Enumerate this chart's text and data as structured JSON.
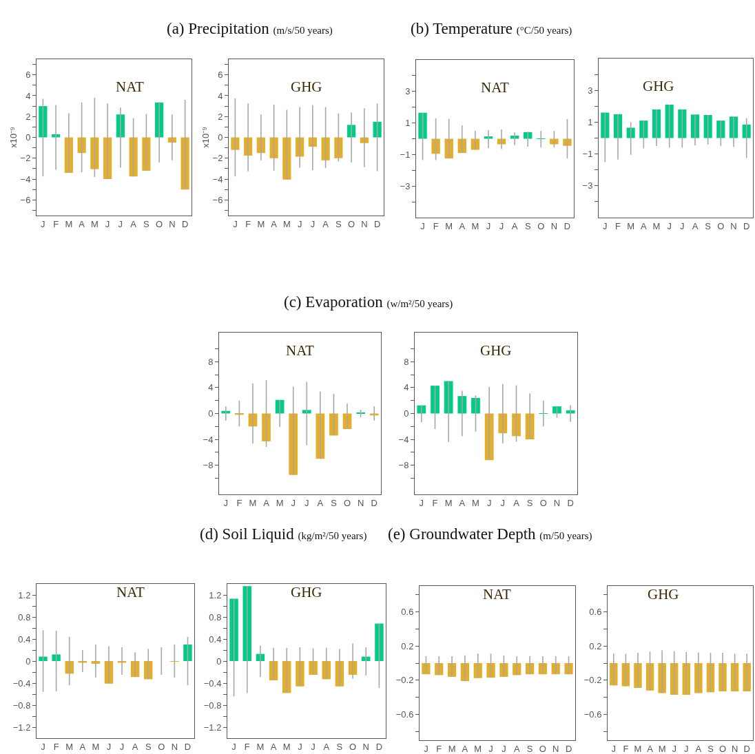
{
  "chart_data": [
    {
      "type": "bar",
      "title": "NAT",
      "annotations": [
        "(a) Precipitation (m/s/50 years)"
      ],
      "ylabel": "x10⁻⁹",
      "categories": [
        "J",
        "F",
        "M",
        "A",
        "M",
        "J",
        "J",
        "A",
        "S",
        "O",
        "N",
        "D"
      ],
      "values": [
        3.0,
        0.3,
        -3.4,
        -1.5,
        -3.05,
        -4.0,
        2.2,
        -3.75,
        -3.2,
        3.35,
        -0.5,
        -5.0
      ],
      "colors": [
        "#00cc88",
        "#00cc88",
        "#e3ae2b",
        "#e3ae2b",
        "#e3ae2b",
        "#e3ae2b",
        "#00cc88",
        "#e3ae2b",
        "#e3ae2b",
        "#00cc88",
        "#e3ae2b",
        "#e3ae2b"
      ],
      "errors": [
        [
          -3.75,
          3.7
        ],
        [
          -3.1,
          3.1
        ],
        [
          -3.4,
          2.3
        ],
        [
          -3.35,
          3.35
        ],
        [
          -3.8,
          3.8
        ],
        [
          -4.0,
          3.25
        ],
        [
          -2.9,
          2.85
        ],
        [
          -3.75,
          1.85
        ],
        [
          -3.2,
          2.25
        ],
        [
          -2.4,
          3.35
        ],
        [
          -2.2,
          2.2
        ],
        [
          -5.0,
          3.6
        ]
      ],
      "ylim": [
        -7.5,
        7.5
      ],
      "yticks": [
        {
          "value": -7,
          "label": null
        },
        -6,
        {
          "value": -5,
          "label": null
        },
        -4,
        {
          "value": -3,
          "label": null
        },
        -2,
        {
          "value": -1,
          "label": null
        },
        0,
        {
          "value": 1,
          "label": null
        },
        2,
        {
          "value": 3,
          "label": null
        },
        4,
        {
          "value": 5,
          "label": null
        },
        6,
        {
          "value": 7,
          "label": null
        }
      ]
    },
    {
      "type": "bar",
      "title": "GHG",
      "ylabel": "x10⁻⁹",
      "categories": [
        "J",
        "F",
        "M",
        "A",
        "M",
        "J",
        "J",
        "A",
        "S",
        "O",
        "N",
        "D"
      ],
      "values": [
        -1.2,
        -1.75,
        -1.5,
        -2.0,
        -4.05,
        -1.85,
        -0.9,
        -2.2,
        -2.0,
        1.2,
        -0.55,
        1.5
      ],
      "colors": [
        "#e3ae2b",
        "#e3ae2b",
        "#e3ae2b",
        "#e3ae2b",
        "#e3ae2b",
        "#e3ae2b",
        "#e3ae2b",
        "#e3ae2b",
        "#e3ae2b",
        "#00cc88",
        "#e3ae2b",
        "#00cc88"
      ],
      "errors": [
        [
          -3.75,
          3.75
        ],
        [
          -3.25,
          3.25
        ],
        [
          -2.2,
          2.2
        ],
        [
          -3.2,
          3.15
        ],
        [
          -4.05,
          2.65
        ],
        [
          -2.9,
          2.9
        ],
        [
          -3.15,
          3.1
        ],
        [
          -2.95,
          2.9
        ],
        [
          -2.3,
          2.3
        ],
        [
          -2.4,
          2.4
        ],
        [
          -2.85,
          2.8
        ],
        [
          -3.25,
          3.25
        ]
      ],
      "ylim": [
        -7.5,
        7.5
      ],
      "yticks": [
        {
          "value": -7,
          "label": null
        },
        -6,
        {
          "value": -5,
          "label": null
        },
        -4,
        {
          "value": -3,
          "label": null
        },
        -2,
        {
          "value": -1,
          "label": null
        },
        0,
        {
          "value": 1,
          "label": null
        },
        2,
        {
          "value": 3,
          "label": null
        },
        4,
        {
          "value": 5,
          "label": null
        },
        6,
        {
          "value": 7,
          "label": null
        }
      ]
    },
    {
      "type": "bar",
      "title": "NAT",
      "annotations": [
        "(b) Temperature (°C/50 years)"
      ],
      "categories": [
        "J",
        "F",
        "M",
        "A",
        "M",
        "J",
        "J",
        "A",
        "S",
        "O",
        "N",
        "D"
      ],
      "values": [
        1.65,
        -0.95,
        -1.25,
        -0.9,
        -0.7,
        0.15,
        -0.35,
        0.2,
        0.42,
        0.02,
        -0.35,
        -0.45
      ],
      "colors": [
        "#00cc88",
        "#e3ae2b",
        "#e3ae2b",
        "#e3ae2b",
        "#e3ae2b",
        "#00cc88",
        "#e3ae2b",
        "#00cc88",
        "#00cc88",
        "#00cc88",
        "#e3ae2b",
        "#e3ae2b"
      ],
      "errors": [
        [
          -1.35,
          1.65
        ],
        [
          -1.35,
          1.3
        ],
        [
          -1.25,
          1.25
        ],
        [
          -0.9,
          0.85
        ],
        [
          -0.7,
          0.5
        ],
        [
          -0.6,
          0.55
        ],
        [
          -0.65,
          0.6
        ],
        [
          -0.4,
          0.4
        ],
        [
          -0.5,
          0.45
        ],
        [
          -0.55,
          0.5
        ],
        [
          -0.55,
          0.5
        ],
        [
          -1.25,
          1.25
        ]
      ],
      "ylim": [
        -5,
        5
      ],
      "yticks": [
        {
          "value": -4,
          "label": null
        },
        -3,
        {
          "value": -2,
          "label": null
        },
        -1,
        {
          "value": 0,
          "label": null
        },
        1,
        {
          "value": 2,
          "label": null
        },
        3,
        {
          "value": 4,
          "label": null
        }
      ]
    },
    {
      "type": "bar",
      "title": "GHG",
      "categories": [
        "J",
        "F",
        "M",
        "A",
        "M",
        "J",
        "J",
        "A",
        "S",
        "O",
        "N",
        "D"
      ],
      "values": [
        1.6,
        1.5,
        0.65,
        1.1,
        1.8,
        2.1,
        1.8,
        1.48,
        1.45,
        1.1,
        1.35,
        0.85
      ],
      "colors": [
        "#00cc88",
        "#00cc88",
        "#00cc88",
        "#00cc88",
        "#00cc88",
        "#00cc88",
        "#00cc88",
        "#00cc88",
        "#00cc88",
        "#00cc88",
        "#00cc88",
        "#00cc88"
      ],
      "errors": [
        [
          -1.5,
          1.6
        ],
        [
          -1.35,
          1.5
        ],
        [
          -1.05,
          1.0
        ],
        [
          -0.65,
          1.1
        ],
        [
          -0.5,
          1.8
        ],
        [
          -0.6,
          2.1
        ],
        [
          -0.6,
          1.8
        ],
        [
          -0.45,
          1.48
        ],
        [
          -0.4,
          1.45
        ],
        [
          -0.5,
          1.1
        ],
        [
          -0.55,
          1.35
        ],
        [
          -1.25,
          1.25
        ]
      ],
      "ylim": [
        -5,
        5
      ],
      "yticks": [
        {
          "value": -4,
          "label": null
        },
        -3,
        {
          "value": -2,
          "label": null
        },
        -1,
        {
          "value": 0,
          "label": null
        },
        1,
        {
          "value": 2,
          "label": null
        },
        3,
        {
          "value": 4,
          "label": null
        }
      ]
    },
    {
      "type": "bar",
      "title": "NAT",
      "annotations": [
        "(c) Evaporation (w/m²/50 years)"
      ],
      "categories": [
        "J",
        "F",
        "M",
        "A",
        "M",
        "J",
        "J",
        "A",
        "S",
        "O",
        "N",
        "D"
      ],
      "values": [
        0.4,
        -0.2,
        -2.0,
        -4.3,
        2.1,
        -9.5,
        0.55,
        -7.0,
        -3.4,
        -2.4,
        0.15,
        -0.3
      ],
      "colors": [
        "#00cc88",
        "#e3ae2b",
        "#e3ae2b",
        "#e3ae2b",
        "#00cc88",
        "#e3ae2b",
        "#00cc88",
        "#e3ae2b",
        "#e3ae2b",
        "#e3ae2b",
        "#00cc88",
        "#e3ae2b"
      ],
      "errors": [
        [
          -1.1,
          1.1
        ],
        [
          -2.0,
          2.0
        ],
        [
          -4.65,
          4.65
        ],
        [
          -5.15,
          5.15
        ],
        [
          -2.1,
          2.1
        ],
        [
          -9.5,
          4.15
        ],
        [
          -4.9,
          4.9
        ],
        [
          -7.0,
          3.4
        ],
        [
          -3.4,
          3.05
        ],
        [
          -2.4,
          1.55
        ],
        [
          -0.6,
          0.6
        ],
        [
          -1.1,
          1.1
        ]
      ],
      "ylim": [
        -12.5,
        12.5
      ],
      "yticks": [
        {
          "value": -10,
          "label": null
        },
        -8,
        {
          "value": -6,
          "label": null
        },
        -4,
        {
          "value": -2,
          "label": null
        },
        0,
        {
          "value": 2,
          "label": null
        },
        4,
        {
          "value": 6,
          "label": null
        },
        8,
        {
          "value": 10,
          "label": null
        }
      ]
    },
    {
      "type": "bar",
      "title": "GHG",
      "categories": [
        "J",
        "F",
        "M",
        "A",
        "M",
        "J",
        "J",
        "A",
        "S",
        "O",
        "N",
        "D"
      ],
      "values": [
        1.25,
        4.3,
        5.0,
        2.7,
        2.4,
        -7.2,
        -3.05,
        -3.5,
        -4.0,
        0.05,
        1.1,
        0.5
      ],
      "colors": [
        "#00cc88",
        "#00cc88",
        "#00cc88",
        "#00cc88",
        "#00cc88",
        "#e3ae2b",
        "#e3ae2b",
        "#e3ae2b",
        "#e3ae2b",
        "#00cc88",
        "#00cc88",
        "#00cc88"
      ],
      "errors": [
        [
          -1.35,
          1.3
        ],
        [
          -2.4,
          4.3
        ],
        [
          -4.4,
          5.0
        ],
        [
          -3.5,
          3.5
        ],
        [
          -2.8,
          2.8
        ],
        [
          -7.2,
          4.1
        ],
        [
          -4.6,
          4.55
        ],
        [
          -4.35,
          4.35
        ],
        [
          -4.0,
          3.1
        ],
        [
          -2.0,
          2.0
        ],
        [
          -0.65,
          1.1
        ],
        [
          -1.3,
          1.25
        ]
      ],
      "ylim": [
        -12.5,
        12.5
      ],
      "yticks": [
        {
          "value": -10,
          "label": null
        },
        -8,
        {
          "value": -6,
          "label": null
        },
        -4,
        {
          "value": -2,
          "label": null
        },
        0,
        {
          "value": 2,
          "label": null
        },
        4,
        {
          "value": 6,
          "label": null
        },
        8,
        {
          "value": 10,
          "label": null
        }
      ]
    },
    {
      "type": "bar",
      "title": "NAT",
      "annotations": [
        "(d) Soil Liquid (kg/m²/50 years)"
      ],
      "categories": [
        "J",
        "F",
        "M",
        "A",
        "M",
        "J",
        "J",
        "A",
        "S",
        "O",
        "N",
        "D"
      ],
      "values": [
        0.08,
        0.12,
        -0.23,
        -0.03,
        -0.05,
        -0.41,
        -0.03,
        -0.29,
        -0.33,
        0,
        -0.01,
        0.3
      ],
      "colors": [
        "#00cc88",
        "#00cc88",
        "#e3ae2b",
        "#e3ae2b",
        "#e3ae2b",
        "#e3ae2b",
        "#e3ae2b",
        "#e3ae2b",
        "#e3ae2b",
        "#e3ae2b",
        "#e3ae2b",
        "#00cc88"
      ],
      "errors": [
        [
          -0.56,
          0.56
        ],
        [
          -0.55,
          0.55
        ],
        [
          -0.44,
          0.44
        ],
        [
          -0.2,
          0.2
        ],
        [
          -0.3,
          0.3
        ],
        [
          -0.41,
          0.27
        ],
        [
          -0.25,
          0.25
        ],
        [
          -0.29,
          0.16
        ],
        [
          -0.33,
          0.22
        ],
        [
          -0.25,
          0.25
        ],
        [
          -0.3,
          0.3
        ],
        [
          -0.44,
          0.44
        ]
      ],
      "ylim": [
        -1.4,
        1.4
      ],
      "yticks": [
        -1.2,
        {
          "value": -1.0,
          "label": null
        },
        -0.8,
        {
          "value": -0.6,
          "label": null
        },
        -0.4,
        {
          "value": -0.2,
          "label": null
        },
        0,
        {
          "value": 0.2,
          "label": null
        },
        0.4,
        {
          "value": 0.6,
          "label": null
        },
        0.8,
        {
          "value": 1.0,
          "label": null
        },
        1.2
      ]
    },
    {
      "type": "bar",
      "title": "GHG",
      "categories": [
        "J",
        "F",
        "M",
        "A",
        "M",
        "J",
        "J",
        "A",
        "S",
        "O",
        "N",
        "D"
      ],
      "values": [
        1.13,
        1.36,
        0.13,
        -0.35,
        -0.58,
        -0.46,
        -0.25,
        -0.33,
        -0.46,
        -0.25,
        0.08,
        0.68
      ],
      "colors": [
        "#00cc88",
        "#00cc88",
        "#00cc88",
        "#e3ae2b",
        "#e3ae2b",
        "#e3ae2b",
        "#e3ae2b",
        "#e3ae2b",
        "#e3ae2b",
        "#e3ae2b",
        "#00cc88",
        "#00cc88"
      ],
      "errors": [
        [
          -0.64,
          1.13
        ],
        [
          -0.58,
          1.36
        ],
        [
          -0.29,
          0.28
        ],
        [
          -0.35,
          0.24
        ],
        [
          -0.58,
          0.24
        ],
        [
          -0.46,
          0.25
        ],
        [
          -0.25,
          0.23
        ],
        [
          -0.33,
          0.24
        ],
        [
          -0.46,
          0.22
        ],
        [
          -0.32,
          0.32
        ],
        [
          -0.26,
          0.25
        ],
        [
          -0.49,
          0.68
        ]
      ],
      "ylim": [
        -1.4,
        1.4
      ],
      "yticks": [
        -1.2,
        {
          "value": -1.0,
          "label": null
        },
        -0.8,
        {
          "value": -0.6,
          "label": null
        },
        -0.4,
        {
          "value": -0.2,
          "label": null
        },
        0,
        {
          "value": 0.2,
          "label": null
        },
        0.4,
        {
          "value": 0.6,
          "label": null
        },
        0.8,
        {
          "value": 1.0,
          "label": null
        },
        1.2
      ]
    },
    {
      "type": "bar",
      "title": "NAT",
      "annotations": [
        "(e) Groundwater Depth (m/50 years)"
      ],
      "categories": [
        "J",
        "F",
        "M",
        "A",
        "M",
        "J",
        "J",
        "A",
        "S",
        "O",
        "N",
        "D"
      ],
      "values": [
        -0.13,
        -0.14,
        -0.16,
        -0.21,
        -0.175,
        -0.17,
        -0.16,
        -0.14,
        -0.13,
        -0.13,
        -0.13,
        -0.13
      ],
      "colors": [
        "#e3ae2b",
        "#e3ae2b",
        "#e3ae2b",
        "#e3ae2b",
        "#e3ae2b",
        "#e3ae2b",
        "#e3ae2b",
        "#e3ae2b",
        "#e3ae2b",
        "#e3ae2b",
        "#e3ae2b",
        "#e3ae2b"
      ],
      "errors": [
        [
          -0.13,
          0.08
        ],
        [
          -0.14,
          0.08
        ],
        [
          -0.16,
          0.08
        ],
        [
          -0.21,
          0.09
        ],
        [
          -0.175,
          0.11
        ],
        [
          -0.17,
          0.11
        ],
        [
          -0.16,
          0.09
        ],
        [
          -0.14,
          0.08
        ],
        [
          -0.13,
          0.08
        ],
        [
          -0.13,
          0.08
        ],
        [
          -0.13,
          0.08
        ],
        [
          -0.13,
          0.08
        ]
      ],
      "ylim": [
        -0.9,
        0.9
      ],
      "yticks": [
        {
          "value": -0.8,
          "label": null
        },
        -0.6,
        {
          "value": -0.4,
          "label": null
        },
        -0.2,
        {
          "value": 0,
          "label": null
        },
        0.2,
        {
          "value": 0.4,
          "label": null
        },
        0.6,
        {
          "value": 0.8,
          "label": null
        }
      ]
    },
    {
      "type": "bar",
      "title": "GHG",
      "categories": [
        "J",
        "F",
        "M",
        "A",
        "M",
        "J",
        "J",
        "A",
        "S",
        "O",
        "N",
        "D"
      ],
      "values": [
        -0.26,
        -0.27,
        -0.29,
        -0.32,
        -0.35,
        -0.37,
        -0.37,
        -0.35,
        -0.34,
        -0.33,
        -0.33,
        -0.33
      ],
      "colors": [
        "#e3ae2b",
        "#e3ae2b",
        "#e3ae2b",
        "#e3ae2b",
        "#e3ae2b",
        "#e3ae2b",
        "#e3ae2b",
        "#e3ae2b",
        "#e3ae2b",
        "#e3ae2b",
        "#e3ae2b",
        "#e3ae2b"
      ],
      "errors": [
        [
          -0.26,
          0.11
        ],
        [
          -0.27,
          0.11
        ],
        [
          -0.29,
          0.12
        ],
        [
          -0.32,
          0.135
        ],
        [
          -0.35,
          0.15
        ],
        [
          -0.37,
          0.14
        ],
        [
          -0.37,
          0.13
        ],
        [
          -0.35,
          0.125
        ],
        [
          -0.34,
          0.12
        ],
        [
          -0.33,
          0.12
        ],
        [
          -0.33,
          0.11
        ],
        [
          -0.33,
          0.11
        ]
      ],
      "ylim": [
        -0.9,
        0.9
      ],
      "yticks": [
        {
          "value": -0.8,
          "label": null
        },
        -0.6,
        {
          "value": -0.4,
          "label": null
        },
        -0.2,
        {
          "value": 0,
          "label": null
        },
        0.2,
        {
          "value": 0.4,
          "label": null
        },
        0.6,
        {
          "value": 0.8,
          "label": null
        }
      ]
    }
  ]
}
